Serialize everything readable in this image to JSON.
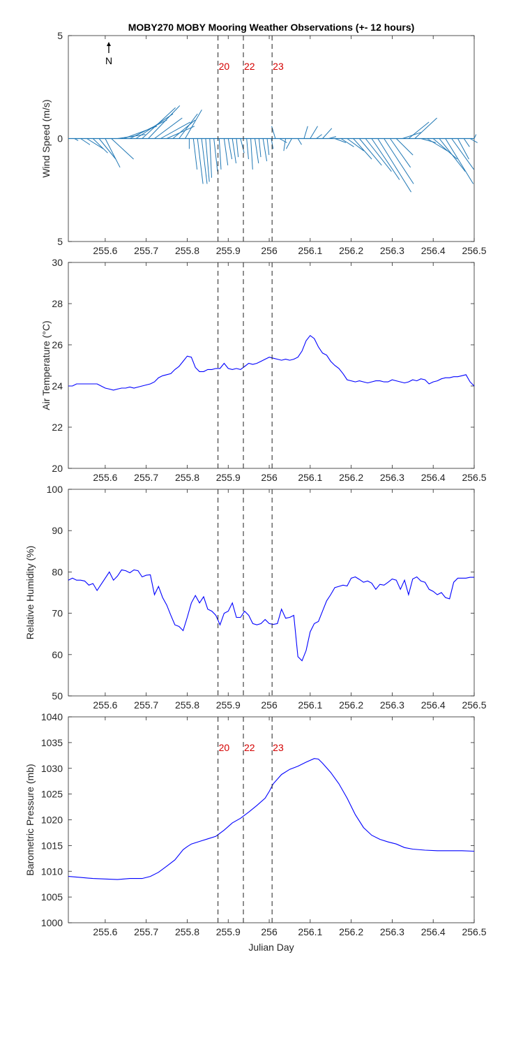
{
  "figure": {
    "title": "MOBY270 MOBY Mooring Weather Observations (+- 12 hours)"
  },
  "colors": {
    "wind": "#1f77b4",
    "series": "#0000ff",
    "markers": "#333333",
    "marker_text": "#d40000",
    "axes": "#262626"
  },
  "chart_data": [
    {
      "id": "wind",
      "type": "quiver",
      "ylabel": "Wind Speed (m/s)",
      "xlim": [
        255.51,
        256.5
      ],
      "ylim": [
        -5,
        5
      ],
      "x_ticks": [
        "255.6",
        "255.7",
        "255.8",
        "255.9",
        "256",
        "256.1",
        "256.2",
        "256.3",
        "256.4",
        "256.5"
      ],
      "y_ticks": [
        {
          "value": 5,
          "label": "5"
        },
        {
          "value": 0,
          "label": "0"
        },
        {
          "value": -5,
          "label": "5"
        }
      ],
      "north_label": "N",
      "north_icon": "north-arrow-icon",
      "markers": [
        {
          "x": 255.875,
          "label": "20"
        },
        {
          "x": 255.937,
          "label": "22"
        },
        {
          "x": 256.007,
          "label": "23"
        }
      ],
      "vectors": [
        [
          255.51,
          0.1,
          0.0
        ],
        [
          255.525,
          0.2,
          -0.1
        ],
        [
          255.54,
          0.5,
          -0.3
        ],
        [
          255.555,
          0.9,
          -0.5
        ],
        [
          255.57,
          0.8,
          -0.7
        ],
        [
          255.585,
          0.9,
          -1.0
        ],
        [
          255.6,
          0.8,
          -1.4
        ],
        [
          255.615,
          1.2,
          -1.0
        ],
        [
          255.63,
          1.5,
          0.2
        ],
        [
          255.645,
          1.8,
          0.6
        ],
        [
          255.66,
          2.0,
          0.9
        ],
        [
          255.675,
          2.0,
          1.2
        ],
        [
          255.69,
          1.8,
          1.5
        ],
        [
          255.705,
          1.7,
          1.6
        ],
        [
          255.72,
          1.5,
          1.0
        ],
        [
          255.735,
          1.6,
          0.8
        ],
        [
          255.75,
          1.5,
          0.6
        ],
        [
          255.765,
          1.2,
          0.9
        ],
        [
          255.78,
          1.0,
          1.2
        ],
        [
          255.795,
          0.9,
          1.4
        ],
        [
          255.805,
          0.0,
          -0.5
        ],
        [
          255.815,
          0.2,
          -1.5
        ],
        [
          255.825,
          0.3,
          -2.2
        ],
        [
          255.835,
          0.3,
          -2.2
        ],
        [
          255.845,
          0.2,
          -2.1
        ],
        [
          255.855,
          0.1,
          -1.9
        ],
        [
          255.865,
          0.2,
          -1.6
        ],
        [
          255.878,
          0.1,
          -1.5
        ],
        [
          255.89,
          0.2,
          -1.3
        ],
        [
          255.9,
          0.2,
          -1.0
        ],
        [
          255.91,
          0.2,
          -1.2
        ],
        [
          255.92,
          0.1,
          -0.9
        ],
        [
          255.93,
          0.2,
          -0.7
        ],
        [
          255.945,
          0.1,
          -1.0
        ],
        [
          255.955,
          0.1,
          -1.5
        ],
        [
          255.965,
          0.2,
          -1.2
        ],
        [
          255.975,
          0.1,
          -0.9
        ],
        [
          255.985,
          0.2,
          -1.1
        ],
        [
          255.995,
          0.1,
          -0.8
        ],
        [
          256.005,
          0.1,
          -0.5
        ],
        [
          256.015,
          -0.2,
          0.6
        ],
        [
          256.025,
          0.4,
          -0.2
        ],
        [
          256.04,
          -0.1,
          -0.6
        ],
        [
          256.055,
          -0.3,
          -0.5
        ],
        [
          256.07,
          0.2,
          -0.3
        ],
        [
          256.085,
          0.2,
          0.6
        ],
        [
          256.1,
          0.4,
          0.6
        ],
        [
          256.115,
          0.3,
          0.2
        ],
        [
          256.13,
          0.5,
          0.5
        ],
        [
          256.145,
          0.4,
          0.1
        ],
        [
          256.16,
          0.6,
          -0.2
        ],
        [
          256.175,
          0.7,
          -0.4
        ],
        [
          256.19,
          0.9,
          -0.6
        ],
        [
          256.205,
          1.0,
          -1.0
        ],
        [
          256.22,
          1.2,
          -1.3
        ],
        [
          256.235,
          1.4,
          -1.6
        ],
        [
          256.25,
          1.5,
          -2.0
        ],
        [
          256.265,
          1.8,
          -2.6
        ],
        [
          256.28,
          1.6,
          -2.2
        ],
        [
          256.295,
          1.1,
          -1.4
        ],
        [
          256.31,
          0.9,
          -0.8
        ],
        [
          256.325,
          1.0,
          0.3
        ],
        [
          256.34,
          1.1,
          0.8
        ],
        [
          256.355,
          1.2,
          1.0
        ],
        [
          256.37,
          0.8,
          -0.2
        ],
        [
          256.385,
          1.1,
          -0.6
        ],
        [
          256.4,
          1.3,
          -1.0
        ],
        [
          256.415,
          1.4,
          -1.6
        ],
        [
          256.43,
          1.5,
          -2.2
        ],
        [
          256.445,
          1.2,
          -1.5
        ],
        [
          256.46,
          0.6,
          -1.0
        ],
        [
          256.475,
          0.3,
          -0.4
        ],
        [
          256.49,
          0.4,
          -0.2
        ],
        [
          256.5,
          0.1,
          0.2
        ]
      ]
    },
    {
      "id": "airtemp",
      "type": "line",
      "ylabel": "Air Temperature (°C)",
      "xlim": [
        255.51,
        256.5
      ],
      "ylim": [
        20,
        30
      ],
      "x_ticks": [
        "255.6",
        "255.7",
        "255.8",
        "255.9",
        "256",
        "256.1",
        "256.2",
        "256.3",
        "256.4",
        "256.5"
      ],
      "y_ticks": [
        {
          "value": 20,
          "label": "20"
        },
        {
          "value": 22,
          "label": "22"
        },
        {
          "value": 24,
          "label": "24"
        },
        {
          "value": 26,
          "label": "26"
        },
        {
          "value": 28,
          "label": "28"
        },
        {
          "value": 30,
          "label": "30"
        }
      ],
      "markers": [
        {
          "x": 255.875
        },
        {
          "x": 255.937
        },
        {
          "x": 256.007
        }
      ],
      "x": [
        255.51,
        255.52,
        255.53,
        255.54,
        255.55,
        255.56,
        255.57,
        255.58,
        255.59,
        255.6,
        255.61,
        255.62,
        255.63,
        255.64,
        255.65,
        255.66,
        255.67,
        255.68,
        255.69,
        255.7,
        255.71,
        255.72,
        255.73,
        255.74,
        255.75,
        255.76,
        255.77,
        255.78,
        255.79,
        255.8,
        255.81,
        255.82,
        255.83,
        255.84,
        255.85,
        255.86,
        255.87,
        255.88,
        255.89,
        255.9,
        255.91,
        255.92,
        255.93,
        255.94,
        255.95,
        255.96,
        255.97,
        255.98,
        255.99,
        256.0,
        256.01,
        256.02,
        256.03,
        256.04,
        256.05,
        256.06,
        256.07,
        256.08,
        256.09,
        256.1,
        256.11,
        256.12,
        256.13,
        256.14,
        256.15,
        256.16,
        256.17,
        256.18,
        256.19,
        256.2,
        256.21,
        256.22,
        256.23,
        256.24,
        256.25,
        256.26,
        256.27,
        256.28,
        256.29,
        256.3,
        256.31,
        256.32,
        256.33,
        256.34,
        256.35,
        256.36,
        256.37,
        256.38,
        256.39,
        256.4,
        256.41,
        256.42,
        256.43,
        256.44,
        256.45,
        256.46,
        256.47,
        256.48,
        256.49,
        256.5
      ],
      "y": [
        24.0,
        24.0,
        24.1,
        24.1,
        24.1,
        24.1,
        24.1,
        24.1,
        24.0,
        23.9,
        23.85,
        23.8,
        23.85,
        23.9,
        23.9,
        23.95,
        23.9,
        23.95,
        24.0,
        24.05,
        24.1,
        24.2,
        24.4,
        24.5,
        24.55,
        24.6,
        24.8,
        24.95,
        25.2,
        25.45,
        25.4,
        24.9,
        24.7,
        24.7,
        24.8,
        24.8,
        24.85,
        24.85,
        25.1,
        24.85,
        24.8,
        24.85,
        24.8,
        24.95,
        25.1,
        25.05,
        25.1,
        25.2,
        25.3,
        25.4,
        25.35,
        25.3,
        25.25,
        25.3,
        25.25,
        25.3,
        25.4,
        25.7,
        26.2,
        26.45,
        26.3,
        25.9,
        25.6,
        25.5,
        25.2,
        25.0,
        24.85,
        24.6,
        24.3,
        24.25,
        24.2,
        24.25,
        24.2,
        24.15,
        24.2,
        24.25,
        24.25,
        24.2,
        24.2,
        24.3,
        24.25,
        24.2,
        24.15,
        24.2,
        24.3,
        24.25,
        24.35,
        24.3,
        24.1,
        24.2,
        24.25,
        24.35,
        24.4,
        24.4,
        24.45,
        24.45,
        24.5,
        24.55,
        24.2,
        24.0
      ]
    },
    {
      "id": "humidity",
      "type": "line",
      "ylabel": "Relative Humidity (%)",
      "xlim": [
        255.51,
        256.5
      ],
      "ylim": [
        50,
        100
      ],
      "x_ticks": [
        "255.6",
        "255.7",
        "255.8",
        "255.9",
        "256",
        "256.1",
        "256.2",
        "256.3",
        "256.4",
        "256.5"
      ],
      "y_ticks": [
        {
          "value": 50,
          "label": "50"
        },
        {
          "value": 60,
          "label": "60"
        },
        {
          "value": 70,
          "label": "70"
        },
        {
          "value": 80,
          "label": "80"
        },
        {
          "value": 90,
          "label": "90"
        },
        {
          "value": 100,
          "label": "100"
        }
      ],
      "markers": [
        {
          "x": 255.875
        },
        {
          "x": 255.937
        },
        {
          "x": 256.007
        }
      ],
      "x": [
        255.51,
        255.52,
        255.53,
        255.54,
        255.55,
        255.56,
        255.57,
        255.58,
        255.59,
        255.6,
        255.61,
        255.62,
        255.63,
        255.64,
        255.65,
        255.66,
        255.67,
        255.68,
        255.69,
        255.7,
        255.71,
        255.72,
        255.73,
        255.74,
        255.75,
        255.76,
        255.77,
        255.78,
        255.79,
        255.8,
        255.81,
        255.82,
        255.83,
        255.84,
        255.85,
        255.86,
        255.87,
        255.88,
        255.89,
        255.9,
        255.91,
        255.92,
        255.93,
        255.94,
        255.95,
        255.96,
        255.97,
        255.98,
        255.99,
        256.0,
        256.01,
        256.02,
        256.03,
        256.04,
        256.05,
        256.06,
        256.07,
        256.08,
        256.09,
        256.1,
        256.11,
        256.12,
        256.13,
        256.14,
        256.15,
        256.16,
        256.17,
        256.18,
        256.19,
        256.2,
        256.21,
        256.22,
        256.23,
        256.24,
        256.25,
        256.26,
        256.27,
        256.28,
        256.29,
        256.3,
        256.31,
        256.32,
        256.33,
        256.34,
        256.35,
        256.36,
        256.37,
        256.38,
        256.39,
        256.4,
        256.41,
        256.42,
        256.43,
        256.44,
        256.45,
        256.46,
        256.47,
        256.48,
        256.49,
        256.5
      ],
      "y": [
        78.0,
        78.5,
        78.0,
        78.0,
        77.8,
        76.8,
        77.2,
        75.5,
        77.0,
        78.5,
        80.0,
        78.0,
        79.0,
        80.5,
        80.3,
        79.8,
        80.5,
        80.3,
        78.8,
        79.2,
        79.3,
        74.5,
        76.5,
        73.8,
        72.0,
        69.5,
        67.2,
        66.8,
        65.8,
        69.0,
        72.5,
        74.3,
        72.5,
        74.0,
        71.0,
        70.5,
        69.5,
        67.2,
        70.0,
        70.5,
        72.5,
        69.0,
        69.0,
        70.5,
        69.5,
        67.5,
        67.2,
        67.5,
        68.5,
        67.5,
        67.3,
        67.5,
        71.0,
        68.8,
        69.0,
        69.5,
        59.5,
        58.5,
        61.0,
        65.5,
        67.5,
        68.0,
        70.5,
        73.0,
        74.5,
        76.2,
        76.5,
        76.8,
        76.6,
        78.5,
        78.8,
        78.2,
        77.5,
        77.8,
        77.3,
        75.8,
        77.0,
        76.8,
        77.5,
        78.3,
        78.0,
        75.8,
        78.0,
        74.5,
        78.3,
        78.8,
        77.8,
        77.5,
        75.8,
        75.3,
        74.5,
        75.0,
        73.8,
        73.5,
        77.5,
        78.5,
        78.5,
        78.5,
        78.7,
        78.7
      ]
    },
    {
      "id": "pressure",
      "type": "line",
      "ylabel": "Barometric Pressure (mb)",
      "xlabel": "Julian Day",
      "xlim": [
        255.51,
        256.5
      ],
      "ylim": [
        1000,
        1040
      ],
      "x_ticks": [
        "255.6",
        "255.7",
        "255.8",
        "255.9",
        "256",
        "256.1",
        "256.2",
        "256.3",
        "256.4",
        "256.5"
      ],
      "y_ticks": [
        {
          "value": 1000,
          "label": "1000"
        },
        {
          "value": 1005,
          "label": "1005"
        },
        {
          "value": 1010,
          "label": "1010"
        },
        {
          "value": 1015,
          "label": "1015"
        },
        {
          "value": 1020,
          "label": "1020"
        },
        {
          "value": 1025,
          "label": "1025"
        },
        {
          "value": 1030,
          "label": "1030"
        },
        {
          "value": 1035,
          "label": "1035"
        },
        {
          "value": 1040,
          "label": "1040"
        }
      ],
      "markers": [
        {
          "x": 255.875,
          "label": "20"
        },
        {
          "x": 255.937,
          "label": "22"
        },
        {
          "x": 256.007,
          "label": "23"
        }
      ],
      "x": [
        255.51,
        255.54,
        255.57,
        255.6,
        255.63,
        255.66,
        255.69,
        255.71,
        255.73,
        255.75,
        255.77,
        255.79,
        255.8,
        255.81,
        255.83,
        255.85,
        255.87,
        255.89,
        255.91,
        255.93,
        255.95,
        255.97,
        255.99,
        256.0,
        256.01,
        256.03,
        256.05,
        256.07,
        256.09,
        256.11,
        256.12,
        256.13,
        256.15,
        256.17,
        256.19,
        256.21,
        256.23,
        256.25,
        256.27,
        256.29,
        256.31,
        256.33,
        256.35,
        256.38,
        256.41,
        256.44,
        256.47,
        256.5
      ],
      "y": [
        1009.0,
        1008.8,
        1008.6,
        1008.5,
        1008.4,
        1008.6,
        1008.6,
        1009.0,
        1009.8,
        1011.0,
        1012.2,
        1014.2,
        1014.8,
        1015.3,
        1015.8,
        1016.3,
        1016.8,
        1018.0,
        1019.4,
        1020.3,
        1021.5,
        1022.8,
        1024.2,
        1025.5,
        1027.0,
        1028.8,
        1029.8,
        1030.4,
        1031.2,
        1031.9,
        1031.8,
        1031.0,
        1029.2,
        1027.0,
        1024.2,
        1021.0,
        1018.5,
        1017.0,
        1016.2,
        1015.7,
        1015.3,
        1014.6,
        1014.3,
        1014.1,
        1014.0,
        1014.0,
        1014.0,
        1013.9
      ]
    }
  ]
}
